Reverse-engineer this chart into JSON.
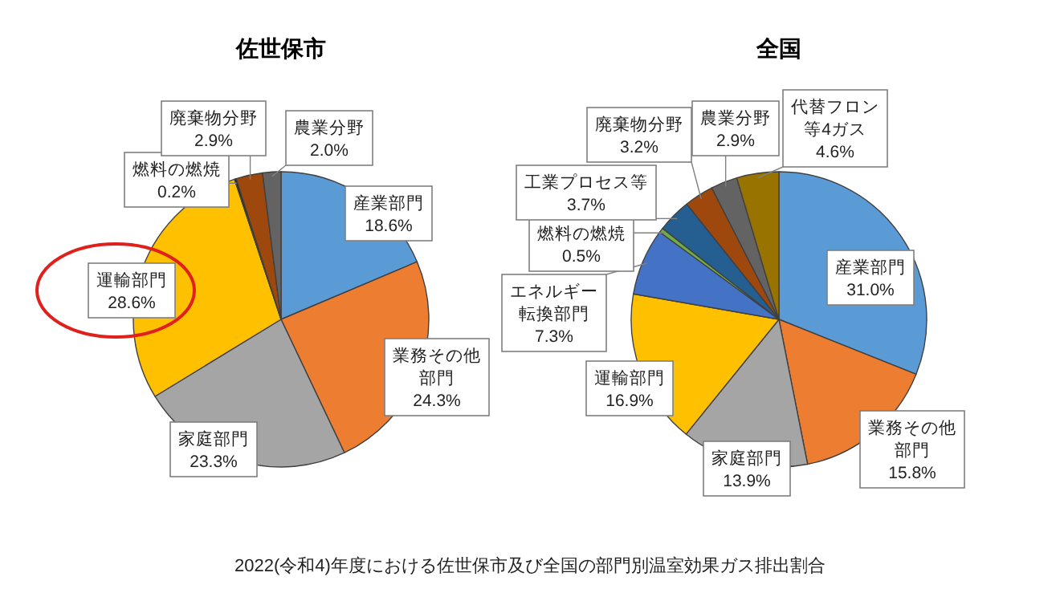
{
  "chart_data": [
    {
      "type": "pie",
      "title": "佐世保市",
      "categories": [
        "産業部門",
        "業務その他部門",
        "家庭部門",
        "運輸部門",
        "燃料の燃焼",
        "廃棄物分野",
        "農業分野"
      ],
      "values": [
        18.6,
        24.3,
        23.3,
        28.6,
        0.2,
        2.9,
        2.0
      ],
      "value_labels": [
        "18.6%",
        "24.3%",
        "23.3%",
        "28.6%",
        "0.2%",
        "2.9%",
        "2.0%"
      ],
      "colors": [
        "#5b9bd5",
        "#ed7d31",
        "#a5a5a5",
        "#ffc000",
        "#1a1a1a",
        "#9e480e",
        "#636363"
      ]
    },
    {
      "type": "pie",
      "title": "全国",
      "categories": [
        "産業部門",
        "業務その他部門",
        "家庭部門",
        "運輸部門",
        "エネルギー転換部門",
        "燃料の燃焼",
        "工業プロセス等",
        "廃棄物分野",
        "農業分野",
        "代替フロン等4ガス"
      ],
      "values": [
        31.0,
        15.8,
        13.9,
        16.9,
        7.3,
        0.5,
        3.7,
        3.2,
        2.9,
        4.6
      ],
      "value_labels": [
        "31.0%",
        "15.8%",
        "13.9%",
        "16.9%",
        "7.3%",
        "0.5%",
        "3.7%",
        "3.2%",
        "2.9%",
        "4.6%"
      ],
      "colors": [
        "#5b9bd5",
        "#ed7d31",
        "#a5a5a5",
        "#ffc000",
        "#4472c4",
        "#70ad47",
        "#255e91",
        "#9e480e",
        "#636363",
        "#997300"
      ],
      "annotations": [
        "2022(令和4)年度における佐世保市及び全国の部門別温室効果ガス排出割合"
      ]
    }
  ]
}
